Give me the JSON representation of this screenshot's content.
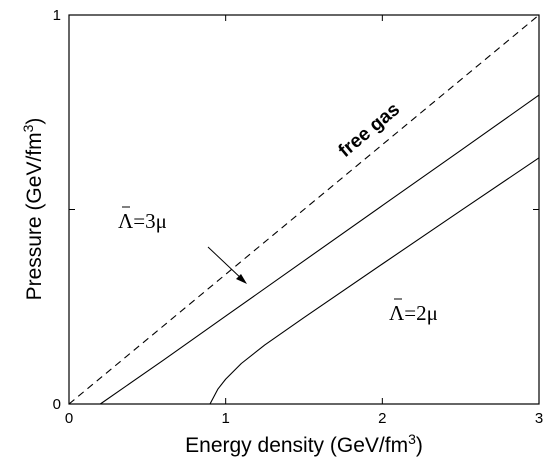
{
  "chart_data": {
    "type": "line",
    "xlabel": "Energy density (GeV/fm",
    "xlabel_sup": "3",
    "xlabel_end": ")",
    "ylabel": "Pressure (GeV/fm",
    "ylabel_sup": "3",
    "ylabel_end": ")",
    "xlim": [
      0,
      3
    ],
    "ylim": [
      0,
      1
    ],
    "x_ticks": [
      0,
      1,
      2,
      3
    ],
    "x_tick_labels": [
      "0",
      "1",
      "2",
      "3"
    ],
    "y_ticks": [
      0,
      0.5,
      1
    ],
    "y_tick_labels": [
      "0",
      "",
      "1"
    ],
    "grid": false,
    "legend": "none",
    "series": [
      {
        "style": "dashed",
        "x": [
          0,
          3
        ],
        "y": [
          0,
          1
        ]
      },
      {
        "style": "solid",
        "x": [
          0.2,
          0.6,
          1.0,
          1.5,
          2.0,
          2.5,
          3.0
        ],
        "y": [
          0.0,
          0.112,
          0.226,
          0.368,
          0.51,
          0.652,
          0.794
        ]
      },
      {
        "style": "solid",
        "x": [
          0.9,
          0.95,
          1.0,
          1.1,
          1.25,
          1.5,
          2.0,
          2.5,
          3.0
        ],
        "y": [
          0.0,
          0.038,
          0.064,
          0.104,
          0.152,
          0.222,
          0.36,
          0.497,
          0.633
        ]
      }
    ],
    "annotations": {
      "free_gas": "free gas",
      "lambda3_sym": "Λ",
      "lambda3_rest": "=3μ",
      "lambda2_sym": "Λ",
      "lambda2_rest": "=2μ"
    }
  }
}
